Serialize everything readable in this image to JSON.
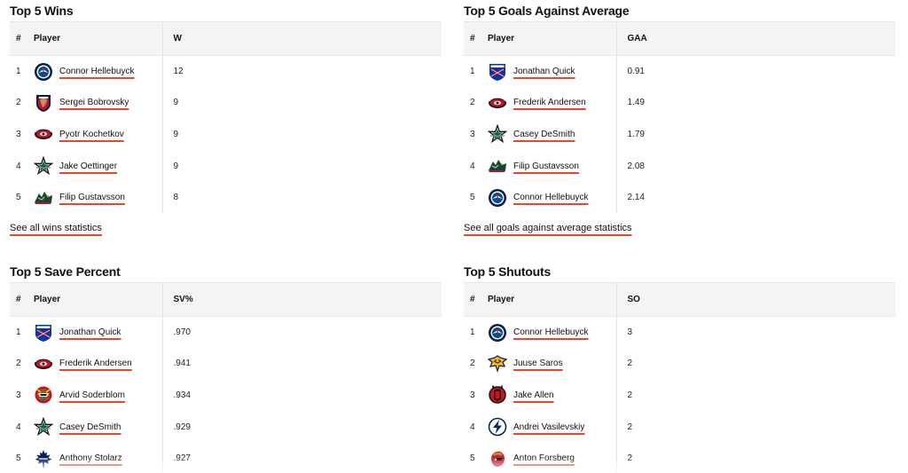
{
  "colors": {
    "accent_underline": "#e8472a",
    "header_bg": "#f4f4f4",
    "border": "#e6e6e6"
  },
  "panels": {
    "wins": {
      "title": "Top 5 Wins",
      "headers": {
        "rank": "#",
        "player": "Player",
        "value": "W"
      },
      "rows": [
        {
          "rank": "1",
          "player": "Connor Hellebuyck",
          "team_icon": "jets-logo-icon",
          "value": "12"
        },
        {
          "rank": "2",
          "player": "Sergei Bobrovsky",
          "team_icon": "panthers-logo-icon",
          "value": "9"
        },
        {
          "rank": "3",
          "player": "Pyotr Kochetkov",
          "team_icon": "hurricanes-logo-icon",
          "value": "9"
        },
        {
          "rank": "4",
          "player": "Jake Oettinger",
          "team_icon": "stars-logo-icon",
          "value": "9"
        },
        {
          "rank": "5",
          "player": "Filip Gustavsson",
          "team_icon": "wild-logo-icon",
          "value": "8"
        }
      ],
      "see_all": "See all wins statistics"
    },
    "gaa": {
      "title": "Top 5 Goals Against Average",
      "headers": {
        "rank": "#",
        "player": "Player",
        "value": "GAA"
      },
      "rows": [
        {
          "rank": "1",
          "player": "Jonathan Quick",
          "team_icon": "rangers-logo-icon",
          "value": "0.91"
        },
        {
          "rank": "2",
          "player": "Frederik Andersen",
          "team_icon": "hurricanes-logo-icon",
          "value": "1.49"
        },
        {
          "rank": "3",
          "player": "Casey DeSmith",
          "team_icon": "stars-logo-icon",
          "value": "1.79"
        },
        {
          "rank": "4",
          "player": "Filip Gustavsson",
          "team_icon": "wild-logo-icon",
          "value": "2.08"
        },
        {
          "rank": "5",
          "player": "Connor Hellebuyck",
          "team_icon": "jets-logo-icon",
          "value": "2.14"
        }
      ],
      "see_all": "See all goals against average statistics"
    },
    "sv": {
      "title": "Top 5 Save Percent",
      "headers": {
        "rank": "#",
        "player": "Player",
        "value": "SV%"
      },
      "rows": [
        {
          "rank": "1",
          "player": "Jonathan Quick",
          "team_icon": "rangers-logo-icon",
          "value": ".970"
        },
        {
          "rank": "2",
          "player": "Frederik Andersen",
          "team_icon": "hurricanes-logo-icon",
          "value": ".941"
        },
        {
          "rank": "3",
          "player": "Arvid Soderblom",
          "team_icon": "blackhawks-logo-icon",
          "value": ".934"
        },
        {
          "rank": "4",
          "player": "Casey DeSmith",
          "team_icon": "stars-logo-icon",
          "value": ".929"
        },
        {
          "rank": "5",
          "player": "Anthony Stolarz",
          "team_icon": "maple-leafs-logo-icon",
          "value": ".927"
        }
      ]
    },
    "so": {
      "title": "Top 5 Shutouts",
      "headers": {
        "rank": "#",
        "player": "Player",
        "value": "SO"
      },
      "rows": [
        {
          "rank": "1",
          "player": "Connor Hellebuyck",
          "team_icon": "jets-logo-icon",
          "value": "3"
        },
        {
          "rank": "2",
          "player": "Juuse Saros",
          "team_icon": "predators-logo-icon",
          "value": "2"
        },
        {
          "rank": "3",
          "player": "Jake Allen",
          "team_icon": "devils-logo-icon",
          "value": "2"
        },
        {
          "rank": "4",
          "player": "Andrei Vasilevskiy",
          "team_icon": "lightning-logo-icon",
          "value": "2"
        },
        {
          "rank": "5",
          "player": "Anton Forsberg",
          "team_icon": "senators-logo-icon",
          "value": "2"
        }
      ]
    }
  }
}
